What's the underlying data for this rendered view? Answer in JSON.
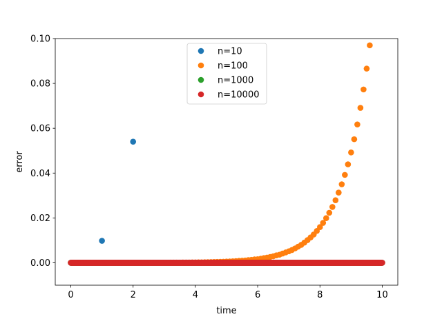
{
  "chart_data": {
    "type": "scatter",
    "title": "",
    "xlabel": "time",
    "ylabel": "error",
    "xlim": [
      -0.5,
      10.5
    ],
    "ylim": [
      -0.01,
      0.1
    ],
    "xticks": [
      0,
      2,
      4,
      6,
      8,
      10
    ],
    "xtick_labels": [
      "0",
      "2",
      "4",
      "6",
      "8",
      "10"
    ],
    "yticks": [
      0.0,
      0.02,
      0.04,
      0.06,
      0.08,
      0.1
    ],
    "ytick_labels": [
      "0.00",
      "0.02",
      "0.04",
      "0.06",
      "0.08",
      "0.10"
    ],
    "grid": false,
    "legend_position": "top-center",
    "series": [
      {
        "name": "n=10",
        "color": "#1f77b4",
        "x": [
          0,
          1,
          2
        ],
        "y": [
          0.0,
          0.0098,
          0.054
        ]
      },
      {
        "name": "n=100",
        "color": "#ff7f0e",
        "x_start": 0,
        "x_step": 0.1,
        "y": [
          0,
          0,
          0,
          0,
          0,
          0,
          0,
          0,
          0,
          0,
          0,
          0,
          0,
          0,
          0,
          0,
          1e-05,
          1e-05,
          1e-05,
          2e-05,
          2e-05,
          2e-05,
          2e-05,
          3e-05,
          3e-05,
          3e-05,
          4e-05,
          4e-05,
          4e-05,
          5e-05,
          6e-05,
          6e-05,
          7e-05,
          8e-05,
          9e-05,
          0.0001,
          0.00011,
          0.00012,
          0.00014,
          0.00015,
          0.00017,
          0.00019,
          0.00022,
          0.00024,
          0.00027,
          0.0003,
          0.00034,
          0.00038,
          0.00043,
          0.00048,
          0.00053,
          0.0006,
          0.00067,
          0.00075,
          0.00084,
          0.00094,
          0.001,
          0.0012,
          0.0013,
          0.0015,
          0.0016,
          0.0018,
          0.0021,
          0.0023,
          0.0026,
          0.0029,
          0.0033,
          0.0036,
          0.0041,
          0.0046,
          0.0051,
          0.0057,
          0.0064,
          0.0072,
          0.008,
          0.009,
          0.0101,
          0.0113,
          0.0126,
          0.0142,
          0.0159,
          0.0178,
          0.0199,
          0.0223,
          0.0249,
          0.0279,
          0.0313,
          0.035,
          0.0392,
          0.0439,
          0.0492,
          0.0551,
          0.0617,
          0.0691,
          0.0773,
          0.0866,
          0.097
        ]
      },
      {
        "name": "n=1000",
        "color": "#2ca02c",
        "x_start": 0,
        "x_end": 10,
        "count": 1001,
        "y_constant": 0.0
      },
      {
        "name": "n=10000",
        "color": "#d62728",
        "x_start": 0,
        "x_end": 10,
        "count": 10001,
        "y_constant": 0.0
      }
    ]
  }
}
